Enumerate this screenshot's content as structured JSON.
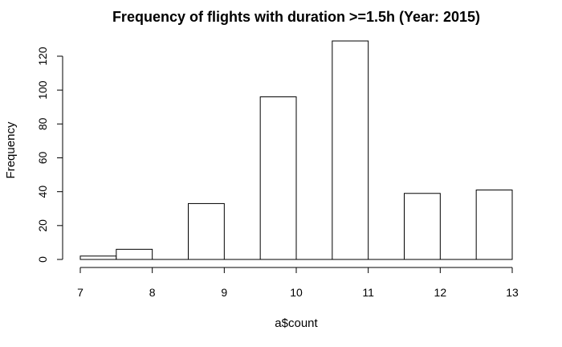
{
  "chart_data": {
    "type": "bar",
    "title": "Frequency of flights with duration >=1.5h (Year: 2015)",
    "xlabel": "a$count",
    "ylabel": "Frequency",
    "bins": [
      {
        "start": 7.0,
        "end": 7.5,
        "value": 2
      },
      {
        "start": 7.5,
        "end": 8.0,
        "value": 6
      },
      {
        "start": 8.5,
        "end": 9.0,
        "value": 33
      },
      {
        "start": 9.5,
        "end": 10.0,
        "value": 96
      },
      {
        "start": 10.5,
        "end": 11.0,
        "value": 129
      },
      {
        "start": 11.5,
        "end": 12.0,
        "value": 39
      },
      {
        "start": 12.5,
        "end": 13.0,
        "value": 41
      }
    ],
    "xlim": [
      7,
      13
    ],
    "ylim": [
      0,
      129
    ],
    "x_ticks": [
      7,
      8,
      9,
      10,
      11,
      12,
      13
    ],
    "y_ticks": [
      0,
      20,
      40,
      60,
      80,
      100,
      120
    ],
    "grid": false,
    "legend": "none",
    "bar_fill": "#ffffff",
    "bar_stroke": "#000000"
  }
}
